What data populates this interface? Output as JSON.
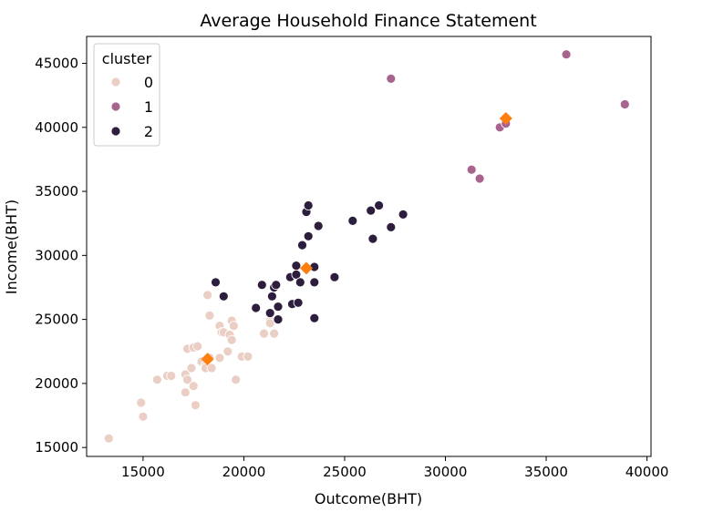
{
  "chart_data": {
    "type": "scatter",
    "title": "Average Household Finance Statement",
    "xlabel": "Outcome(BHT)",
    "ylabel": "Income(BHT)",
    "xlim": [
      12200,
      40200
    ],
    "ylim": [
      14300,
      47100
    ],
    "xticks": [
      15000,
      20000,
      25000,
      30000,
      35000,
      40000
    ],
    "yticks": [
      15000,
      20000,
      25000,
      30000,
      35000,
      40000,
      45000
    ],
    "grid": false,
    "legend": {
      "title": "cluster",
      "placement": "top-left",
      "entries": [
        {
          "label": "0",
          "color": "#ebcfc5"
        },
        {
          "label": "1",
          "color": "#a8648f"
        },
        {
          "label": "2",
          "color": "#2d1e3e"
        }
      ]
    },
    "series": [
      {
        "name": "0",
        "color": "#ebcfc5",
        "points": [
          [
            13300,
            15700
          ],
          [
            14900,
            18500
          ],
          [
            15000,
            17400
          ],
          [
            15700,
            20300
          ],
          [
            16200,
            20600
          ],
          [
            16400,
            20600
          ],
          [
            17100,
            20700
          ],
          [
            17100,
            19300
          ],
          [
            17200,
            20300
          ],
          [
            17200,
            22700
          ],
          [
            17400,
            21200
          ],
          [
            17500,
            22800
          ],
          [
            17500,
            19800
          ],
          [
            17600,
            18300
          ],
          [
            17700,
            22900
          ],
          [
            17900,
            21700
          ],
          [
            18100,
            21400
          ],
          [
            18100,
            21200
          ],
          [
            18200,
            26900
          ],
          [
            18300,
            25300
          ],
          [
            18300,
            22000
          ],
          [
            18400,
            21200
          ],
          [
            18800,
            22000
          ],
          [
            18800,
            24500
          ],
          [
            18900,
            24000
          ],
          [
            19000,
            24000
          ],
          [
            19200,
            22500
          ],
          [
            19300,
            23800
          ],
          [
            19400,
            23400
          ],
          [
            19400,
            24900
          ],
          [
            19500,
            24500
          ],
          [
            19600,
            20300
          ],
          [
            19900,
            22100
          ],
          [
            20200,
            22100
          ],
          [
            21300,
            24900
          ],
          [
            21300,
            24700
          ],
          [
            21000,
            23900
          ],
          [
            21500,
            23900
          ]
        ]
      },
      {
        "name": "1",
        "color": "#a8648f",
        "points": [
          [
            27300,
            43800
          ],
          [
            31300,
            36700
          ],
          [
            31700,
            36000
          ],
          [
            32700,
            40000
          ],
          [
            33000,
            40300
          ],
          [
            36000,
            45700
          ],
          [
            38900,
            41800
          ]
        ]
      },
      {
        "name": "2",
        "color": "#2d1e3e",
        "points": [
          [
            18600,
            27900
          ],
          [
            19000,
            26800
          ],
          [
            20600,
            25900
          ],
          [
            20900,
            27700
          ],
          [
            21300,
            25500
          ],
          [
            21400,
            26800
          ],
          [
            21500,
            27500
          ],
          [
            21600,
            27700
          ],
          [
            21700,
            26000
          ],
          [
            21700,
            25000
          ],
          [
            22300,
            28300
          ],
          [
            22400,
            26200
          ],
          [
            22600,
            28500
          ],
          [
            22600,
            29200
          ],
          [
            22700,
            26300
          ],
          [
            22800,
            27900
          ],
          [
            22900,
            30800
          ],
          [
            23100,
            33400
          ],
          [
            23200,
            33900
          ],
          [
            23200,
            31500
          ],
          [
            23500,
            29100
          ],
          [
            23500,
            27900
          ],
          [
            23500,
            25100
          ],
          [
            23700,
            32300
          ],
          [
            24500,
            28300
          ],
          [
            25400,
            32700
          ],
          [
            26300,
            33500
          ],
          [
            26400,
            31300
          ],
          [
            26700,
            33900
          ],
          [
            27300,
            32200
          ],
          [
            27900,
            33200
          ]
        ]
      }
    ],
    "centroids": {
      "color": "#ff7f0e",
      "marker": "diamond",
      "points": [
        [
          18200,
          21900
        ],
        [
          23100,
          29000
        ],
        [
          33000,
          40700
        ]
      ]
    }
  }
}
